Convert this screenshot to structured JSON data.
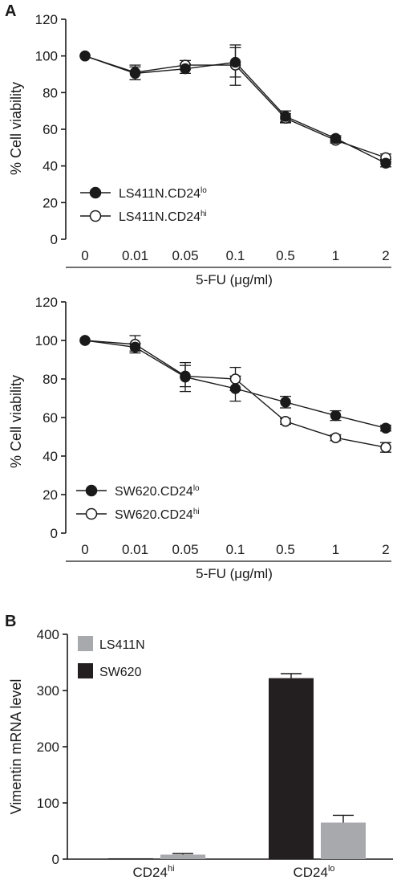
{
  "panels": {
    "a": "A",
    "b": "B"
  },
  "chart_data": [
    {
      "type": "line",
      "x": [
        "0",
        "0.01",
        "0.05",
        "0.1",
        "0.5",
        "1",
        "2"
      ],
      "xlabel": "5-FU (μg/ml)",
      "ylabel": "% Cell viability",
      "ylim": [
        0,
        120
      ],
      "yticks": [
        "0",
        "20",
        "40",
        "60",
        "80",
        "100",
        "120"
      ],
      "legend_position": "bottom-left",
      "series": [
        {
          "name_base": "LS411N.CD24",
          "name_sup": "lo",
          "marker": "filled",
          "values": [
            100,
            90.5,
            93,
            96.5,
            67,
            55,
            41.5
          ],
          "errors": [
            1,
            3.5,
            2.5,
            8,
            3,
            1.5,
            2
          ]
        },
        {
          "name_base": "LS411N.CD24",
          "name_sup": "hi",
          "marker": "open",
          "values": [
            100,
            91,
            95,
            95,
            66,
            54,
            44.5
          ],
          "errors": [
            1,
            4,
            2.5,
            11,
            2.5,
            1.5,
            2
          ]
        }
      ]
    },
    {
      "type": "line",
      "x": [
        "0",
        "0.01",
        "0.05",
        "0.1",
        "0.5",
        "1",
        "2"
      ],
      "xlabel": "5-FU (μg/ml)",
      "ylabel": "% Cell viability",
      "ylim": [
        0,
        120
      ],
      "yticks": [
        "0",
        "20",
        "40",
        "60",
        "80",
        "100",
        "120"
      ],
      "legend_position": "bottom-left",
      "series": [
        {
          "name_base": "SW620.CD24",
          "name_sup": "lo",
          "marker": "filled",
          "values": [
            100,
            96.5,
            81,
            75,
            68,
            61,
            54.5
          ],
          "errors": [
            1,
            2,
            7.5,
            6.5,
            3,
            2.5,
            1.5
          ]
        },
        {
          "name_base": "SW620.CD24",
          "name_sup": "hi",
          "marker": "open",
          "values": [
            100,
            98,
            81.5,
            80,
            58,
            49.5,
            44.5
          ],
          "errors": [
            1,
            4.5,
            5.5,
            6,
            1.5,
            1.5,
            2.5
          ]
        }
      ]
    },
    {
      "type": "bar",
      "categories": [
        {
          "base": "CD24",
          "sup": "hi"
        },
        {
          "base": "CD24",
          "sup": "lo"
        }
      ],
      "ylabel": "Vimentin mRNA level",
      "ylim": [
        0,
        400
      ],
      "yticks": [
        "0",
        "100",
        "200",
        "300",
        "400"
      ],
      "legend_position": "top-left",
      "series": [
        {
          "name": "SW620",
          "color": "#231f20",
          "values": [
            1.5,
            322
          ],
          "errors": [
            0,
            8
          ]
        },
        {
          "name": "LS411N",
          "color": "#a7a9ac",
          "values": [
            8,
            65
          ],
          "errors": [
            2,
            13
          ]
        }
      ]
    }
  ]
}
